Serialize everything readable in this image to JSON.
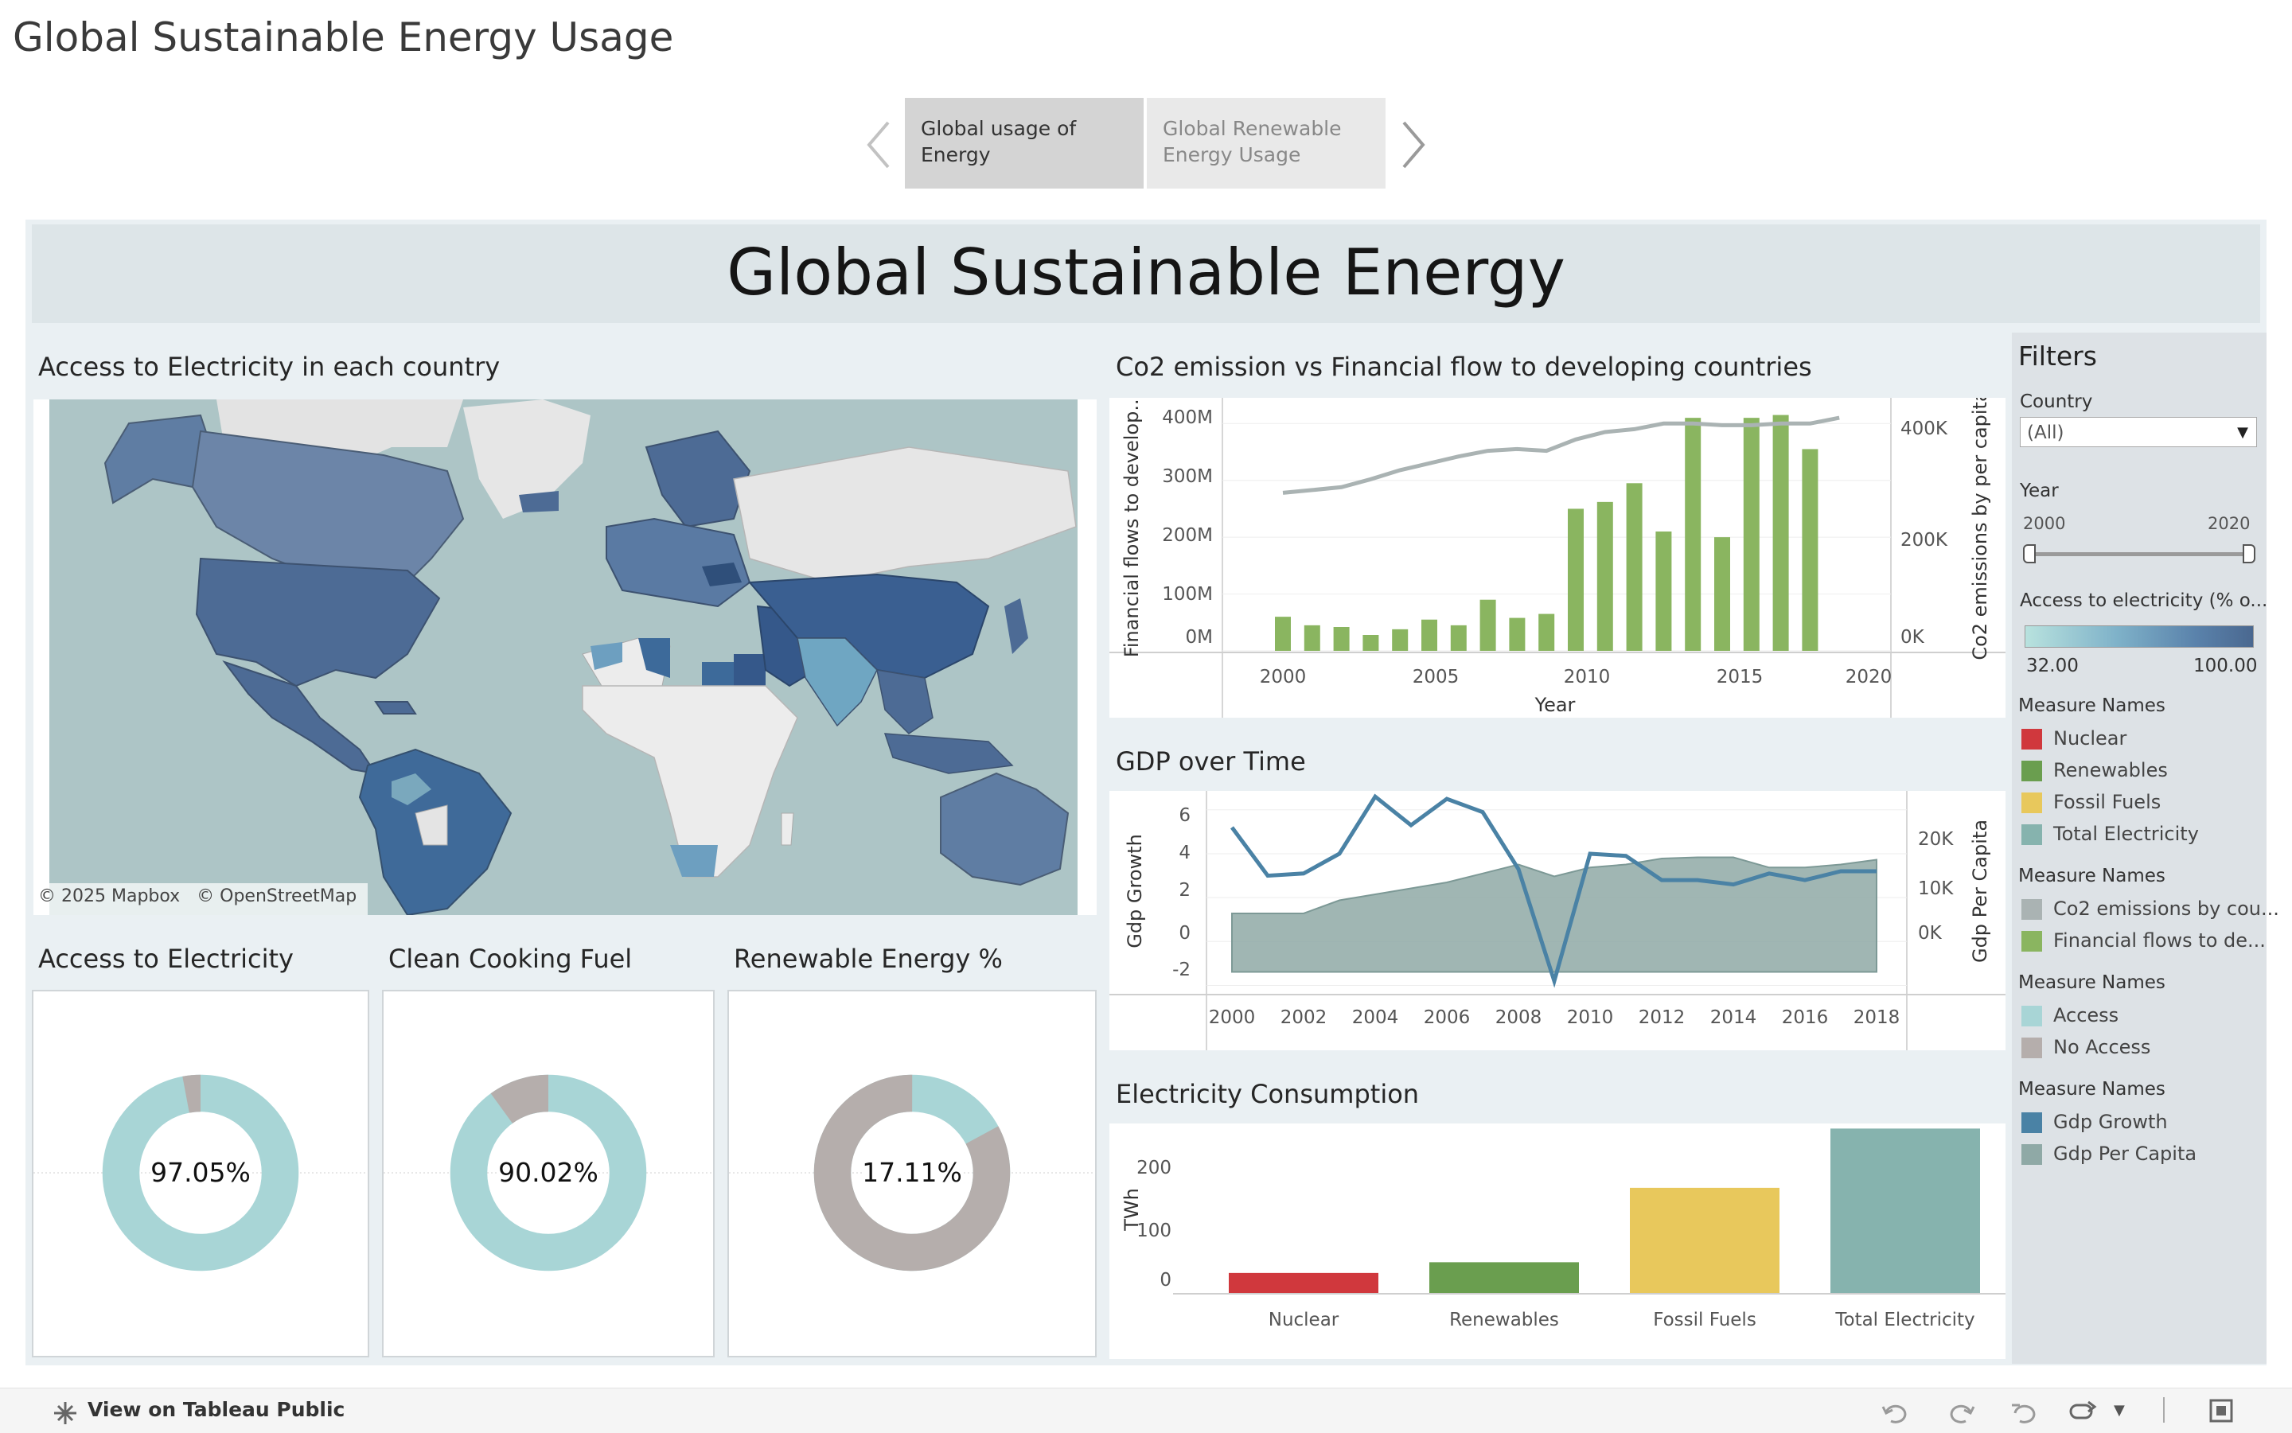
{
  "page": {
    "title": "Global Sustainable Energy Usage"
  },
  "story": {
    "tabs": [
      {
        "label": "Global usage of Energy"
      },
      {
        "label": "Global Renewable Energy Usage"
      }
    ]
  },
  "dashboard": {
    "title": "Global Sustainable Energy"
  },
  "map": {
    "title": "Access to Electricity in each country",
    "attribution_mapbox": "© 2025 Mapbox",
    "attribution_osm": "© OpenStreetMap"
  },
  "donuts": [
    {
      "title": "Access to Electricity",
      "label": "97.05%",
      "value": 97.05,
      "main_color": "#a8d5d6",
      "rest_color": "#b5aeac"
    },
    {
      "title": "Clean Cooking Fuel",
      "label": "90.02%",
      "value": 90.02,
      "main_color": "#a8d5d6",
      "rest_color": "#b5aeac"
    },
    {
      "title": "Renewable Energy %",
      "label": "17.11%",
      "value": 17.11,
      "main_color": "#a8d5d6",
      "rest_color": "#b5aeac"
    }
  ],
  "co2_chart": {
    "title": "Co2 emission vs Financial flow to developing countries",
    "x_title": "Year",
    "left_title": "Financial flows to develop...",
    "right_title": "Co2 emissions by per capita",
    "left_ticks": [
      "400M",
      "300M",
      "200M",
      "100M",
      "0M"
    ],
    "right_ticks": [
      "400K",
      "200K",
      "0K"
    ],
    "x_ticks": [
      "2000",
      "2005",
      "2010",
      "2015",
      "2020"
    ]
  },
  "gdp_chart": {
    "title": "GDP over Time",
    "left_title": "Gdp Growth",
    "right_title": "Gdp Per Capita",
    "left_ticks": [
      "6",
      "4",
      "2",
      "0",
      "-2"
    ],
    "right_ticks": [
      "20K",
      "10K",
      "0K"
    ],
    "x_ticks": [
      "2000",
      "2002",
      "2004",
      "2006",
      "2008",
      "2010",
      "2012",
      "2014",
      "2016",
      "2018"
    ]
  },
  "elec_chart": {
    "title": "Electricity Consumption",
    "y_title": "TWh",
    "y_ticks": [
      "200",
      "100",
      "0"
    ]
  },
  "chart_data": [
    {
      "type": "bar",
      "title": "Co2 emission vs Financial flow to developing countries",
      "xlabel": "Year",
      "ylabel": "Financial flows to develop...",
      "x": [
        2000,
        2001,
        2002,
        2003,
        2004,
        2005,
        2006,
        2007,
        2008,
        2009,
        2010,
        2011,
        2012,
        2013,
        2014,
        2015,
        2016,
        2017,
        2018,
        2019
      ],
      "ylim": [
        0,
        420
      ],
      "series": [
        {
          "name": "Financial flows to de...",
          "type": "bar",
          "color": "#8ab560",
          "values": [
            60,
            45,
            42,
            28,
            38,
            55,
            45,
            90,
            58,
            65,
            250,
            262,
            295,
            210,
            410,
            200,
            410,
            415,
            355,
            0
          ]
        },
        {
          "name": "Co2 emissions by cou...",
          "type": "line",
          "axis": "right",
          "color": "#aab3b3",
          "ylim": [
            0,
            420
          ],
          "values": [
            278,
            283,
            288,
            302,
            318,
            330,
            342,
            352,
            355,
            352,
            372,
            385,
            390,
            400,
            400,
            397,
            397,
            400,
            400,
            410
          ]
        }
      ]
    },
    {
      "type": "line",
      "title": "GDP over Time",
      "x": [
        2000,
        2001,
        2002,
        2003,
        2004,
        2005,
        2006,
        2007,
        2008,
        2009,
        2010,
        2011,
        2012,
        2013,
        2014,
        2015,
        2016,
        2017,
        2018
      ],
      "series": [
        {
          "name": "Gdp Growth",
          "type": "line",
          "color": "#4a82a5",
          "ylim": [
            -2.2,
            6.5
          ],
          "values": [
            5.2,
            3.0,
            3.1,
            4.0,
            6.6,
            5.3,
            6.5,
            5.9,
            3.3,
            -1.8,
            4.0,
            3.9,
            2.8,
            2.8,
            2.6,
            3.1,
            2.8,
            3.2,
            3.2
          ]
        },
        {
          "name": "Gdp Per Capita",
          "type": "area",
          "axis": "right",
          "color": "#8fa9a6",
          "ylim": [
            -3000,
            29000
          ],
          "values": [
            9800,
            9800,
            9800,
            12000,
            13000,
            14000,
            15000,
            16500,
            18000,
            16000,
            17500,
            18000,
            19000,
            19200,
            19200,
            17500,
            17500,
            18000,
            18800
          ]
        }
      ]
    },
    {
      "type": "bar",
      "title": "Electricity Consumption",
      "ylabel": "TWh",
      "ylim": [
        0,
        265
      ],
      "categories": [
        "Nuclear",
        "Renewables",
        "Fossil Fuels",
        "Total Electricity"
      ],
      "values": [
        33,
        50,
        168,
        262
      ],
      "colors": [
        "#d0383d",
        "#6a9e4f",
        "#e8c85c",
        "#86b3ae"
      ]
    }
  ],
  "filters": {
    "title": "Filters",
    "country_label": "Country",
    "country_value": "(All)",
    "year_label": "Year",
    "year_min": "2000",
    "year_max": "2020",
    "access_label": "Access to electricity (% o...",
    "access_min": "32.00",
    "access_max": "100.00",
    "legends": [
      {
        "title": "Measure Names",
        "items": [
          {
            "label": "Nuclear",
            "color": "#d0383d"
          },
          {
            "label": "Renewables",
            "color": "#6a9e4f"
          },
          {
            "label": "Fossil Fuels",
            "color": "#e8c85c"
          },
          {
            "label": "Total Electricity",
            "color": "#86b3ae"
          }
        ]
      },
      {
        "title": "Measure Names",
        "items": [
          {
            "label": "Co2 emissions by cou...",
            "color": "#aab3b3"
          },
          {
            "label": "Financial flows to de...",
            "color": "#8ab560"
          }
        ]
      },
      {
        "title": "Measure Names",
        "items": [
          {
            "label": "Access",
            "color": "#a8d5d6"
          },
          {
            "label": "No Access",
            "color": "#b5aeac"
          }
        ]
      },
      {
        "title": "Measure Names",
        "items": [
          {
            "label": "Gdp Growth",
            "color": "#4a82a5"
          },
          {
            "label": "Gdp Per Capita",
            "color": "#8fa9a6"
          }
        ]
      }
    ]
  },
  "footer": {
    "link": "View on Tableau Public"
  }
}
